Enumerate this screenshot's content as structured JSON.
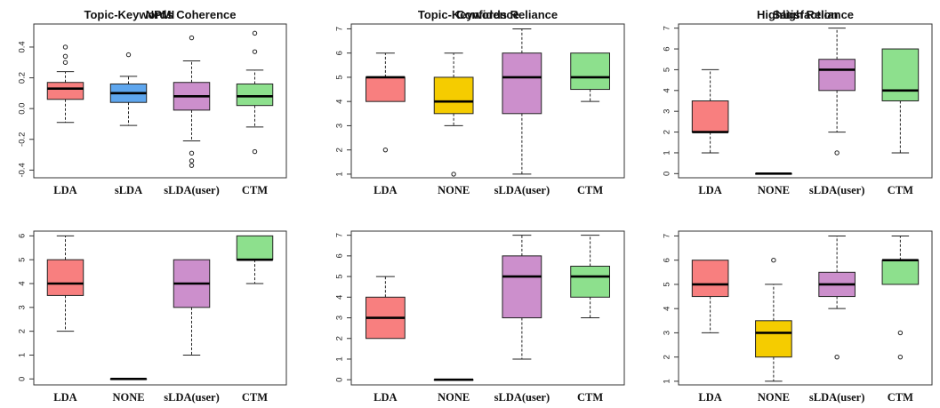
{
  "chart_data": [
    {
      "type": "box",
      "title": "NPMI",
      "ylim": [
        -0.45,
        0.55
      ],
      "yticks": [
        "-0.4",
        "-0.2",
        "0.0",
        "0.2",
        "0.4"
      ],
      "ytick_values": [
        -0.4,
        -0.2,
        0.0,
        0.2,
        0.4
      ],
      "categories": [
        "LDA",
        "sLDA",
        "sLDA(user)",
        "CTM"
      ],
      "colors": [
        "#f87f7f",
        "#5ea6ee",
        "#cc8fcc",
        "#8de08d"
      ],
      "boxes": [
        {
          "min": -0.09,
          "q1": 0.06,
          "median": 0.13,
          "q3": 0.17,
          "max": 0.24,
          "outliers": [
            0.3,
            0.34,
            0.4
          ]
        },
        {
          "min": -0.11,
          "q1": 0.04,
          "median": 0.1,
          "q3": 0.16,
          "max": 0.21,
          "outliers": [
            0.35
          ]
        },
        {
          "min": -0.21,
          "q1": -0.01,
          "median": 0.08,
          "q3": 0.17,
          "max": 0.31,
          "outliers": [
            -0.29,
            -0.34,
            -0.37,
            0.46
          ]
        },
        {
          "min": -0.12,
          "q1": 0.02,
          "median": 0.08,
          "q3": 0.16,
          "max": 0.25,
          "outliers": [
            -0.28,
            0.37,
            0.49
          ]
        }
      ]
    },
    {
      "type": "box",
      "title": "Confidence",
      "ylim": [
        0.85,
        7.2
      ],
      "yticks": [
        "1",
        "2",
        "3",
        "4",
        "5",
        "6",
        "7"
      ],
      "ytick_values": [
        1,
        2,
        3,
        4,
        5,
        6,
        7
      ],
      "categories": [
        "LDA",
        "NONE",
        "sLDA(user)",
        "CTM"
      ],
      "colors": [
        "#f87f7f",
        "#f5cc00",
        "#cc8fcc",
        "#8de08d"
      ],
      "boxes": [
        {
          "min": 4,
          "q1": 4,
          "median": 5,
          "q3": 5,
          "max": 6,
          "outliers": [
            2
          ]
        },
        {
          "min": 3,
          "q1": 3.5,
          "median": 4,
          "q3": 5,
          "max": 6,
          "outliers": [
            1
          ]
        },
        {
          "min": 1,
          "q1": 3.5,
          "median": 5,
          "q3": 6,
          "max": 7,
          "outliers": []
        },
        {
          "min": 4,
          "q1": 4.5,
          "median": 5,
          "q3": 6,
          "max": 6,
          "outliers": []
        }
      ]
    },
    {
      "type": "box",
      "title": "Highligh Reliance",
      "ylim": [
        -0.2,
        7.2
      ],
      "yticks": [
        "0",
        "1",
        "2",
        "3",
        "4",
        "5",
        "6",
        "7"
      ],
      "ytick_values": [
        0,
        1,
        2,
        3,
        4,
        5,
        6,
        7
      ],
      "categories": [
        "LDA",
        "NONE",
        "sLDA(user)",
        "CTM"
      ],
      "colors": [
        "#f87f7f",
        "#f5cc00",
        "#cc8fcc",
        "#8de08d"
      ],
      "boxes": [
        {
          "min": 1,
          "q1": 2,
          "median": 2,
          "q3": 3.5,
          "max": 5,
          "outliers": []
        },
        {
          "min": 0,
          "q1": 0,
          "median": 0,
          "q3": 0,
          "max": 0,
          "outliers": []
        },
        {
          "min": 2,
          "q1": 4,
          "median": 5,
          "q3": 5.5,
          "max": 7,
          "outliers": [
            1
          ]
        },
        {
          "min": 1,
          "q1": 3.5,
          "median": 4,
          "q3": 6,
          "max": 6,
          "outliers": []
        }
      ]
    },
    {
      "type": "box",
      "title": "Topic-Keywords Coherence",
      "ylim": [
        -0.25,
        6.2
      ],
      "yticks": [
        "0",
        "1",
        "2",
        "3",
        "4",
        "5",
        "6"
      ],
      "ytick_values": [
        0,
        1,
        2,
        3,
        4,
        5,
        6
      ],
      "categories": [
        "LDA",
        "NONE",
        "sLDA(user)",
        "CTM"
      ],
      "colors": [
        "#f87f7f",
        "#f5cc00",
        "#cc8fcc",
        "#8de08d"
      ],
      "boxes": [
        {
          "min": 2,
          "q1": 3.5,
          "median": 4,
          "q3": 5,
          "max": 6,
          "outliers": []
        },
        {
          "min": 0,
          "q1": 0,
          "median": 0,
          "q3": 0,
          "max": 0,
          "outliers": []
        },
        {
          "min": 1,
          "q1": 3,
          "median": 4,
          "q3": 5,
          "max": 5,
          "outliers": []
        },
        {
          "min": 4,
          "q1": 5,
          "median": 5,
          "q3": 6,
          "max": 6,
          "outliers": []
        }
      ]
    },
    {
      "type": "box",
      "title": "Topic-Keywords Reliance",
      "ylim": [
        -0.25,
        7.2
      ],
      "yticks": [
        "0",
        "1",
        "2",
        "3",
        "4",
        "5",
        "6",
        "7"
      ],
      "ytick_values": [
        0,
        1,
        2,
        3,
        4,
        5,
        6,
        7
      ],
      "categories": [
        "LDA",
        "NONE",
        "sLDA(user)",
        "CTM"
      ],
      "colors": [
        "#f87f7f",
        "#f5cc00",
        "#cc8fcc",
        "#8de08d"
      ],
      "boxes": [
        {
          "min": 2,
          "q1": 2,
          "median": 3,
          "q3": 4,
          "max": 5,
          "outliers": []
        },
        {
          "min": 0,
          "q1": 0,
          "median": 0,
          "q3": 0,
          "max": 0,
          "outliers": []
        },
        {
          "min": 1,
          "q1": 3,
          "median": 5,
          "q3": 6,
          "max": 7,
          "outliers": []
        },
        {
          "min": 3,
          "q1": 4,
          "median": 5,
          "q3": 5.5,
          "max": 7,
          "outliers": []
        }
      ]
    },
    {
      "type": "box",
      "title": "Satisfaction",
      "ylim": [
        0.85,
        7.2
      ],
      "yticks": [
        "1",
        "2",
        "3",
        "4",
        "5",
        "6",
        "7"
      ],
      "ytick_values": [
        1,
        2,
        3,
        4,
        5,
        6,
        7
      ],
      "categories": [
        "LDA",
        "NONE",
        "sLDA(user)",
        "CTM"
      ],
      "colors": [
        "#f87f7f",
        "#f5cc00",
        "#cc8fcc",
        "#8de08d"
      ],
      "boxes": [
        {
          "min": 3,
          "q1": 4.5,
          "median": 5,
          "q3": 6,
          "max": 6,
          "outliers": []
        },
        {
          "min": 1,
          "q1": 2,
          "median": 3,
          "q3": 3.5,
          "max": 5,
          "outliers": [
            6
          ]
        },
        {
          "min": 4,
          "q1": 4.5,
          "median": 5,
          "q3": 5.5,
          "max": 7,
          "outliers": [
            2
          ]
        },
        {
          "min": 5,
          "q1": 5,
          "median": 6,
          "q3": 6,
          "max": 7,
          "outliers": [
            2,
            3
          ]
        }
      ]
    }
  ]
}
